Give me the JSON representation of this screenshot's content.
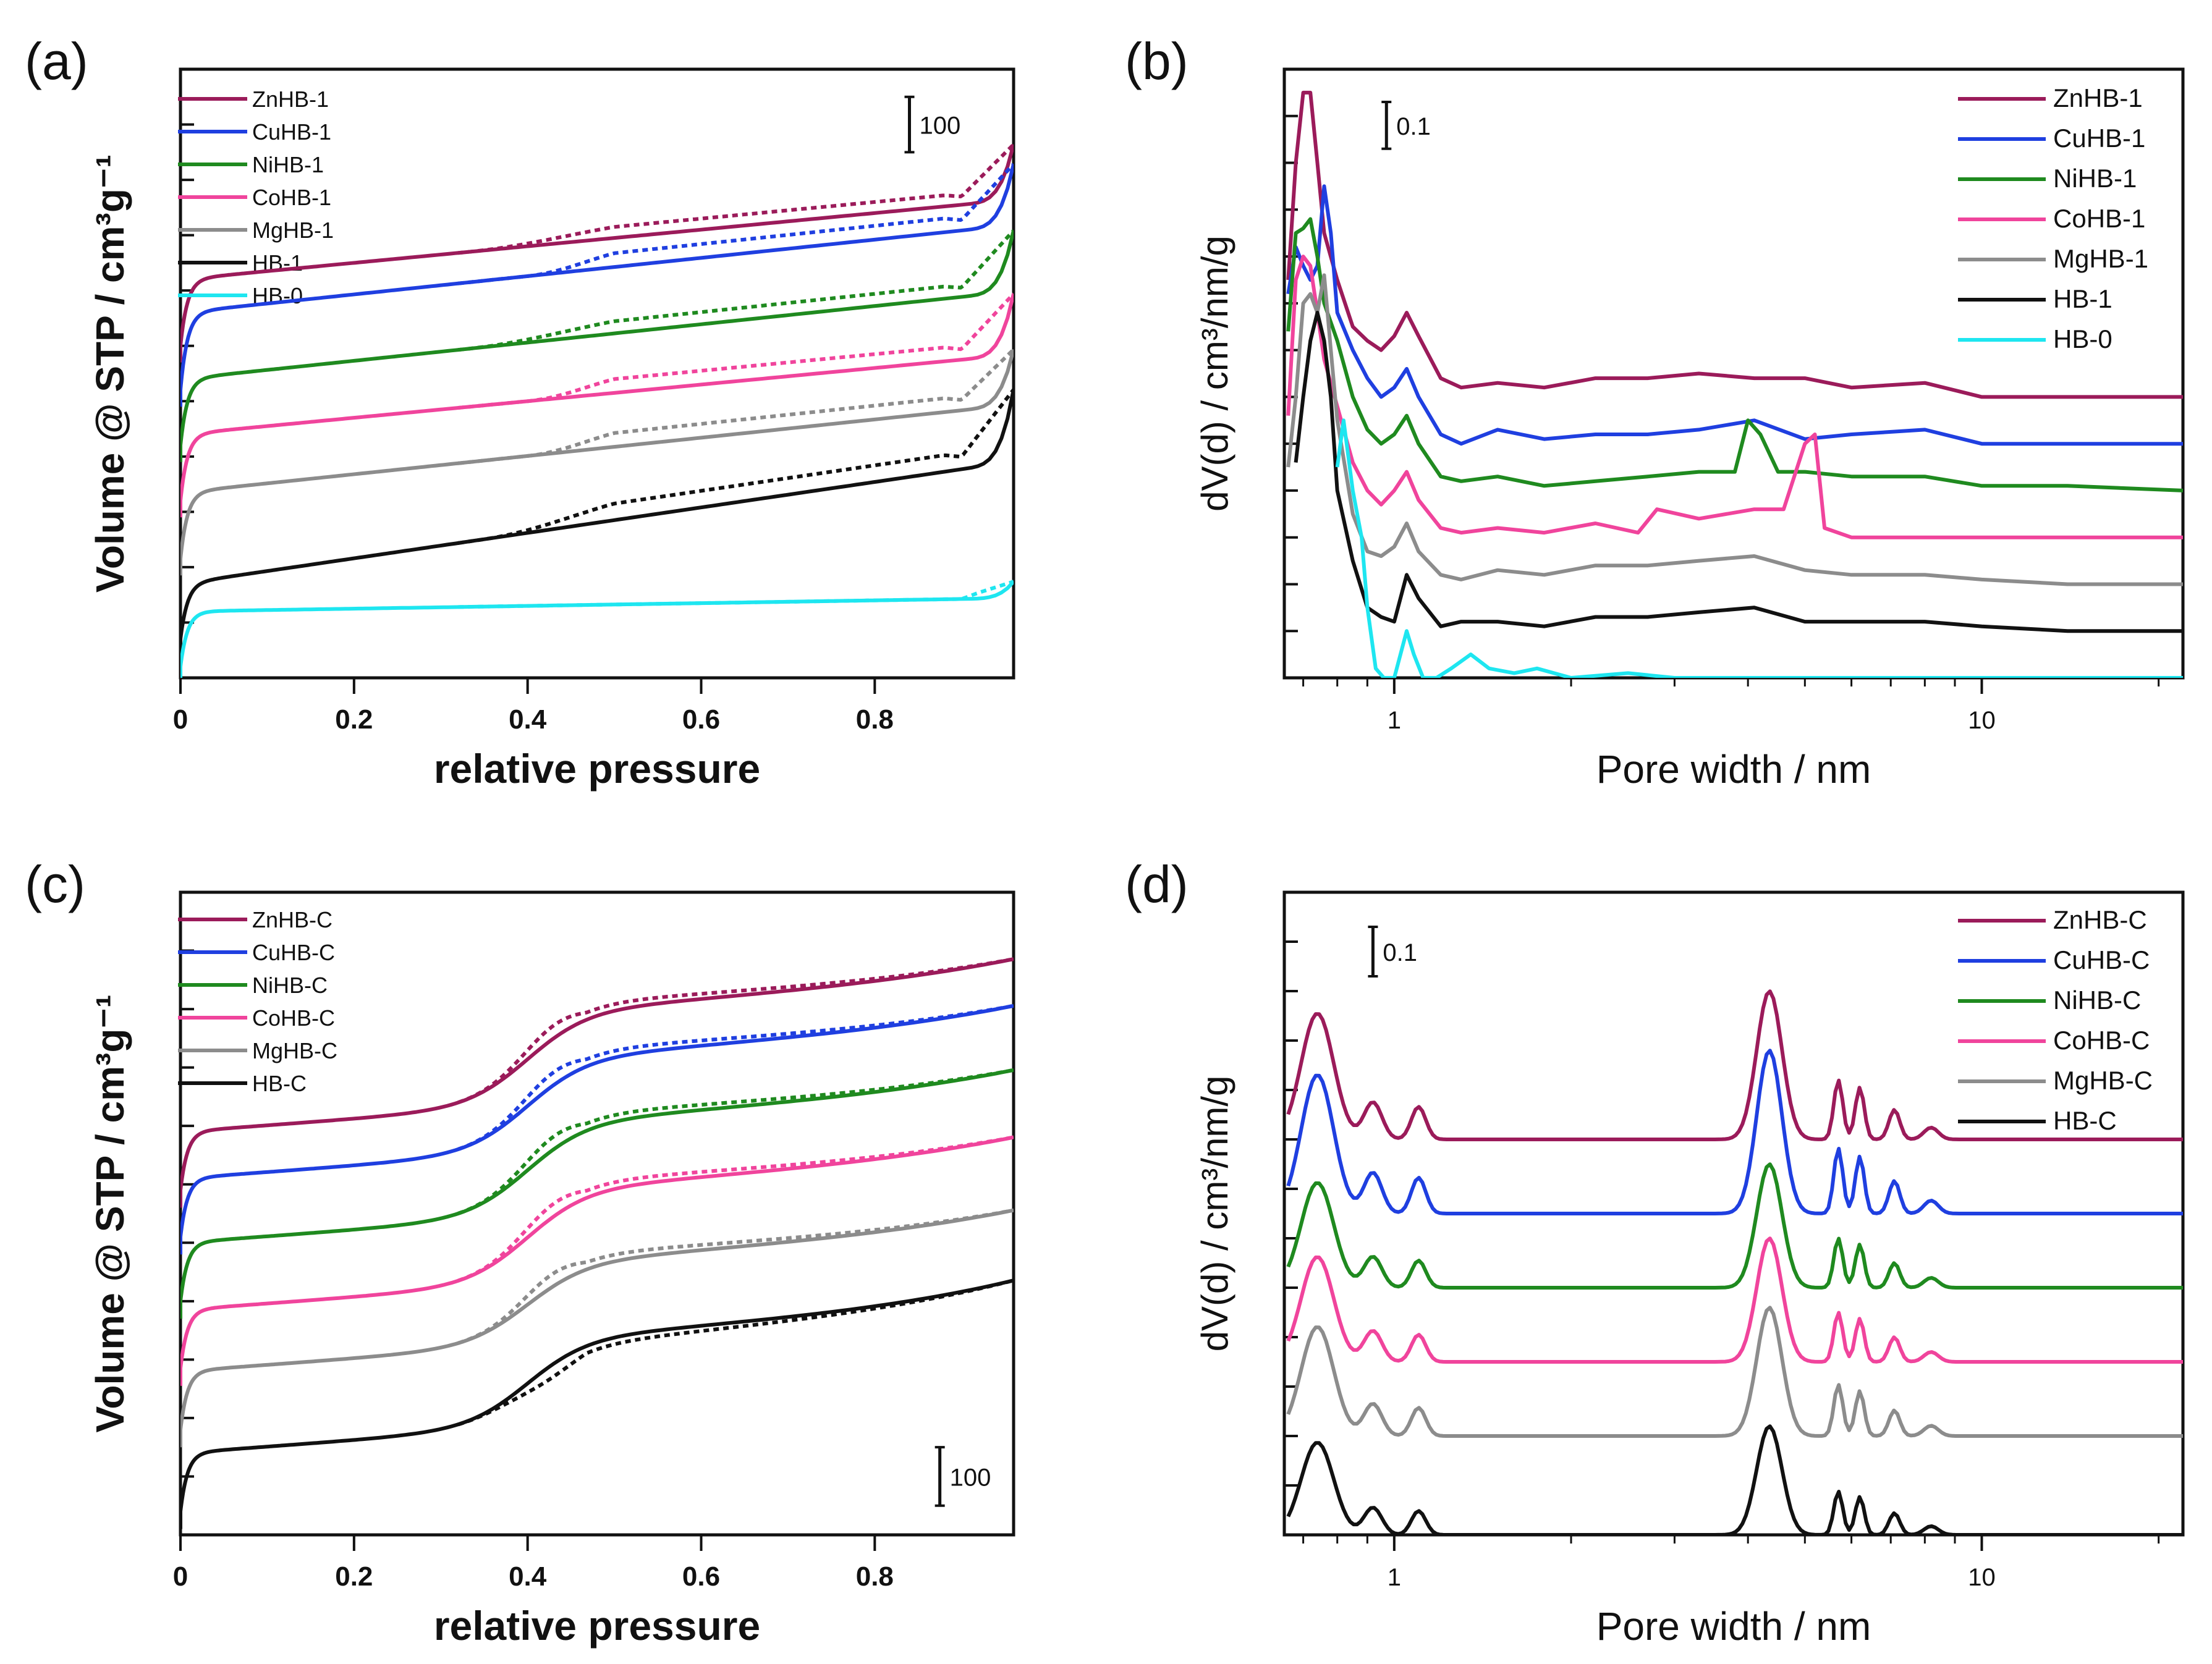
{
  "chart_data": [
    {
      "id": "a",
      "type": "line",
      "panel_label": "(a)",
      "xlabel": "relative pressure",
      "ylabel": "Volume @ STP / cm³g⁻¹",
      "xlim": [
        0,
        0.96
      ],
      "ylim": [
        0,
        1100
      ],
      "xticks": [
        0,
        0.2,
        0.4,
        0.6,
        0.8
      ],
      "xtick_labels": [
        "0",
        "0.2",
        "0.4",
        "0.6",
        "0.8"
      ],
      "ytick_values": [
        100,
        200,
        300,
        400,
        500,
        600,
        700,
        800,
        900,
        1000
      ],
      "scale_bar": {
        "label": "100",
        "value": 100,
        "x": 0.84,
        "y0": 950
      },
      "legend_position": "top-left",
      "series": [
        {
          "name": "ZnHB-1",
          "color": "#9b1b5a",
          "offset": 600,
          "knee": 120,
          "slope": 150,
          "hyst_x0": 0.33,
          "hyst_x1": 0.5,
          "hyst_h": 20,
          "end_rise": 100,
          "dashed_end": true
        },
        {
          "name": "CuHB-1",
          "color": "#1f3fe0",
          "offset": 520,
          "knee": 140,
          "slope": 165,
          "hyst_x0": 0.4,
          "hyst_x1": 0.5,
          "hyst_h": 25,
          "end_rise": 110,
          "dashed_end": true
        },
        {
          "name": "NiHB-1",
          "color": "#1f8a1f",
          "offset": 420,
          "knee": 120,
          "slope": 165,
          "hyst_x0": 0.33,
          "hyst_x1": 0.5,
          "hyst_h": 22,
          "end_rise": 110,
          "dashed_end": true
        },
        {
          "name": "CoHB-1",
          "color": "#f0449c",
          "offset": 320,
          "knee": 120,
          "slope": 150,
          "hyst_x0": 0.4,
          "hyst_x1": 0.5,
          "hyst_h": 25,
          "end_rise": 110,
          "dashed_end": true
        },
        {
          "name": "MgHB-1",
          "color": "#8c8c8c",
          "offset": 215,
          "knee": 120,
          "slope": 165,
          "hyst_x0": 0.4,
          "hyst_x1": 0.5,
          "hyst_h": 25,
          "end_rise": 100,
          "dashed_end": true
        },
        {
          "name": "HB-1",
          "color": "#111111",
          "offset": 70,
          "knee": 100,
          "slope": 230,
          "hyst_x0": 0.35,
          "hyst_x1": 0.5,
          "hyst_h": 30,
          "end_rise": 130,
          "dashed_end": true
        },
        {
          "name": "HB-0",
          "color": "#1ee6f0",
          "offset": 20,
          "knee": 100,
          "slope": 25,
          "hyst_x0": 0.9,
          "hyst_x1": 0.92,
          "hyst_h": 2,
          "end_rise": 30,
          "dashed_end": true
        }
      ]
    },
    {
      "id": "b",
      "type": "line",
      "panel_label": "(b)",
      "xlabel": "Pore width / nm",
      "ylabel": "dV(d) / cm³/nm/g",
      "xscale": "log",
      "xlim": [
        0.65,
        22
      ],
      "ylim": [
        0,
        1.3
      ],
      "xticks": [
        1,
        10
      ],
      "xtick_labels": [
        "1",
        "10"
      ],
      "ytick_values": [
        0.1,
        0.2,
        0.3,
        0.4,
        0.5,
        0.6,
        0.7,
        0.8,
        0.9,
        1.0,
        1.1,
        1.2
      ],
      "scale_bar": {
        "label": "0.1",
        "value": 0.1,
        "x": 0.97,
        "y0": 1.13
      },
      "legend_position": "top-right",
      "series": [
        {
          "name": "ZnHB-1",
          "color": "#9b1b5a",
          "x": [
            0.66,
            0.68,
            0.7,
            0.72,
            0.74,
            0.76,
            0.8,
            0.85,
            0.9,
            0.95,
            1.0,
            1.05,
            1.1,
            1.2,
            1.3,
            1.5,
            1.8,
            2.2,
            2.7,
            3.3,
            4.1,
            5.0,
            6.0,
            8.0,
            10.0,
            14.0,
            22.0
          ],
          "y": [
            0.85,
            1.1,
            1.25,
            1.25,
            1.1,
            0.95,
            0.85,
            0.75,
            0.72,
            0.7,
            0.73,
            0.78,
            0.73,
            0.64,
            0.62,
            0.63,
            0.62,
            0.64,
            0.64,
            0.65,
            0.64,
            0.64,
            0.62,
            0.63,
            0.6,
            0.6,
            0.6
          ]
        },
        {
          "name": "CuHB-1",
          "color": "#1f3fe0",
          "x": [
            0.66,
            0.68,
            0.7,
            0.72,
            0.74,
            0.76,
            0.78,
            0.8,
            0.85,
            0.9,
            0.95,
            1.0,
            1.05,
            1.1,
            1.2,
            1.3,
            1.5,
            1.8,
            2.2,
            2.7,
            3.3,
            4.1,
            5.0,
            6.0,
            8.0,
            10.0,
            14.0,
            22.0
          ],
          "y": [
            0.82,
            0.92,
            0.88,
            0.85,
            0.88,
            1.05,
            0.95,
            0.78,
            0.7,
            0.64,
            0.6,
            0.62,
            0.66,
            0.6,
            0.52,
            0.5,
            0.53,
            0.51,
            0.52,
            0.52,
            0.53,
            0.55,
            0.51,
            0.52,
            0.53,
            0.5,
            0.5,
            0.5
          ]
        },
        {
          "name": "NiHB-1",
          "color": "#1f8a1f",
          "x": [
            0.66,
            0.68,
            0.7,
            0.72,
            0.74,
            0.76,
            0.8,
            0.85,
            0.9,
            0.95,
            1.0,
            1.05,
            1.1,
            1.2,
            1.3,
            1.5,
            1.8,
            2.2,
            2.7,
            3.3,
            3.8,
            4.0,
            4.2,
            4.5,
            5.0,
            6.0,
            8.0,
            10.0,
            14.0,
            22.0
          ],
          "y": [
            0.74,
            0.95,
            0.96,
            0.98,
            0.9,
            0.8,
            0.72,
            0.6,
            0.53,
            0.5,
            0.52,
            0.56,
            0.5,
            0.43,
            0.42,
            0.43,
            0.41,
            0.42,
            0.43,
            0.44,
            0.44,
            0.55,
            0.52,
            0.44,
            0.44,
            0.43,
            0.43,
            0.41,
            0.41,
            0.4
          ]
        },
        {
          "name": "CoHB-1",
          "color": "#f0449c",
          "x": [
            0.66,
            0.68,
            0.7,
            0.72,
            0.74,
            0.76,
            0.8,
            0.85,
            0.9,
            0.95,
            1.0,
            1.05,
            1.1,
            1.2,
            1.3,
            1.5,
            1.8,
            2.2,
            2.6,
            2.8,
            3.3,
            4.1,
            4.6,
            5.0,
            5.2,
            5.4,
            6.0,
            8.0,
            10.0,
            14.0,
            22.0
          ],
          "y": [
            0.56,
            0.85,
            0.9,
            0.88,
            0.78,
            0.68,
            0.58,
            0.46,
            0.4,
            0.37,
            0.4,
            0.44,
            0.38,
            0.32,
            0.31,
            0.32,
            0.31,
            0.33,
            0.31,
            0.36,
            0.34,
            0.36,
            0.36,
            0.5,
            0.52,
            0.32,
            0.3,
            0.3,
            0.3,
            0.3,
            0.3
          ]
        },
        {
          "name": "MgHB-1",
          "color": "#8c8c8c",
          "x": [
            0.66,
            0.68,
            0.7,
            0.72,
            0.74,
            0.76,
            0.78,
            0.8,
            0.85,
            0.9,
            0.95,
            1.0,
            1.05,
            1.1,
            1.2,
            1.3,
            1.5,
            1.8,
            2.2,
            2.7,
            3.3,
            4.1,
            5.0,
            6.0,
            8.0,
            10.0,
            14.0,
            22.0
          ],
          "y": [
            0.45,
            0.6,
            0.8,
            0.82,
            0.78,
            0.86,
            0.7,
            0.55,
            0.35,
            0.27,
            0.26,
            0.28,
            0.33,
            0.27,
            0.22,
            0.21,
            0.23,
            0.22,
            0.24,
            0.24,
            0.25,
            0.26,
            0.23,
            0.22,
            0.22,
            0.21,
            0.2,
            0.2
          ]
        },
        {
          "name": "HB-1",
          "color": "#111111",
          "x": [
            0.68,
            0.7,
            0.72,
            0.74,
            0.76,
            0.78,
            0.8,
            0.85,
            0.9,
            0.95,
            1.0,
            1.05,
            1.1,
            1.2,
            1.3,
            1.5,
            1.8,
            2.2,
            2.7,
            3.3,
            4.1,
            5.0,
            6.0,
            8.0,
            10.0,
            14.0,
            22.0
          ],
          "y": [
            0.46,
            0.6,
            0.72,
            0.78,
            0.72,
            0.6,
            0.4,
            0.25,
            0.15,
            0.13,
            0.12,
            0.22,
            0.17,
            0.11,
            0.12,
            0.12,
            0.11,
            0.13,
            0.13,
            0.14,
            0.15,
            0.12,
            0.12,
            0.12,
            0.11,
            0.1,
            0.1
          ]
        },
        {
          "name": "HB-0",
          "color": "#1ee6f0",
          "x": [
            0.8,
            0.82,
            0.85,
            0.88,
            0.9,
            0.93,
            0.96,
            1.0,
            1.05,
            1.08,
            1.12,
            1.18,
            1.25,
            1.35,
            1.45,
            1.6,
            1.75,
            2.0,
            2.5,
            3.0,
            4.0,
            6.0,
            10.0,
            22.0
          ],
          "y": [
            0.45,
            0.55,
            0.4,
            0.3,
            0.15,
            0.02,
            0.0,
            0.0,
            0.1,
            0.05,
            0.0,
            0.0,
            0.02,
            0.05,
            0.02,
            0.01,
            0.02,
            0.0,
            0.01,
            0.0,
            0.0,
            0.0,
            0.0,
            0.0
          ]
        }
      ]
    },
    {
      "id": "c",
      "type": "line",
      "panel_label": "(c)",
      "xlabel": "relative pressure",
      "ylabel": "Volume @ STP / cm³g⁻¹",
      "xlim": [
        0,
        0.96
      ],
      "ylim": [
        0,
        1100
      ],
      "xticks": [
        0,
        0.2,
        0.4,
        0.6,
        0.8
      ],
      "xtick_labels": [
        "0",
        "0.2",
        "0.4",
        "0.6",
        "0.8"
      ],
      "ytick_values": [
        100,
        200,
        300,
        400,
        500,
        600,
        700,
        800,
        900,
        1000
      ],
      "scale_bar": {
        "label": "100",
        "value": 100,
        "x": 0.875,
        "y0": 50
      },
      "legend_position": "top-left",
      "series": [
        {
          "name": "ZnHB-C",
          "color": "#9b1b5a",
          "offset": 590,
          "knee": 100,
          "slope": 110,
          "step": 160,
          "step_center": 0.4,
          "hyst_h": 22,
          "end_rise": 30
        },
        {
          "name": "CuHB-C",
          "color": "#1f3fe0",
          "offset": 510,
          "knee": 100,
          "slope": 110,
          "step": 160,
          "step_center": 0.4,
          "hyst_h": 22,
          "end_rise": 30
        },
        {
          "name": "NiHB-C",
          "color": "#1f8a1f",
          "offset": 400,
          "knee": 100,
          "slope": 110,
          "step": 160,
          "step_center": 0.4,
          "hyst_h": 22,
          "end_rise": 30
        },
        {
          "name": "CoHB-C",
          "color": "#f0449c",
          "offset": 285,
          "knee": 100,
          "slope": 110,
          "step": 160,
          "step_center": 0.4,
          "hyst_h": 22,
          "end_rise": 30
        },
        {
          "name": "MgHB-C",
          "color": "#8c8c8c",
          "offset": 180,
          "knee": 100,
          "slope": 110,
          "step": 140,
          "step_center": 0.4,
          "hyst_h": 22,
          "end_rise": 30
        },
        {
          "name": "HB-C",
          "color": "#111111",
          "offset": 40,
          "knee": 100,
          "slope": 110,
          "step": 150,
          "step_center": 0.4,
          "hyst_h": -22,
          "end_rise": 40
        }
      ]
    },
    {
      "id": "d",
      "type": "line",
      "panel_label": "(d)",
      "xlabel": "Pore width / nm",
      "ylabel": "dV(d) / cm³/nm/g",
      "xscale": "log",
      "xlim": [
        0.65,
        22
      ],
      "ylim": [
        0,
        1.3
      ],
      "xticks": [
        1,
        10
      ],
      "xtick_labels": [
        "1",
        "10"
      ],
      "ytick_values": [
        0.1,
        0.2,
        0.3,
        0.4,
        0.5,
        0.6,
        0.7,
        0.8,
        0.9,
        1.0,
        1.1,
        1.2
      ],
      "scale_bar": {
        "label": "0.1",
        "value": 0.1,
        "x": 0.92,
        "y0": 1.13
      },
      "legend_position": "top-right",
      "series": [
        {
          "name": "ZnHB-C",
          "color": "#9b1b5a",
          "baseline": 0.8,
          "scale": 0.3
        },
        {
          "name": "CuHB-C",
          "color": "#1f3fe0",
          "baseline": 0.65,
          "scale": 0.33
        },
        {
          "name": "NiHB-C",
          "color": "#1f8a1f",
          "baseline": 0.5,
          "scale": 0.25
        },
        {
          "name": "CoHB-C",
          "color": "#f0449c",
          "baseline": 0.35,
          "scale": 0.25
        },
        {
          "name": "MgHB-C",
          "color": "#8c8c8c",
          "baseline": 0.2,
          "scale": 0.26
        },
        {
          "name": "HB-C",
          "color": "#111111",
          "baseline": 0.0,
          "scale": 0.22
        }
      ]
    }
  ]
}
